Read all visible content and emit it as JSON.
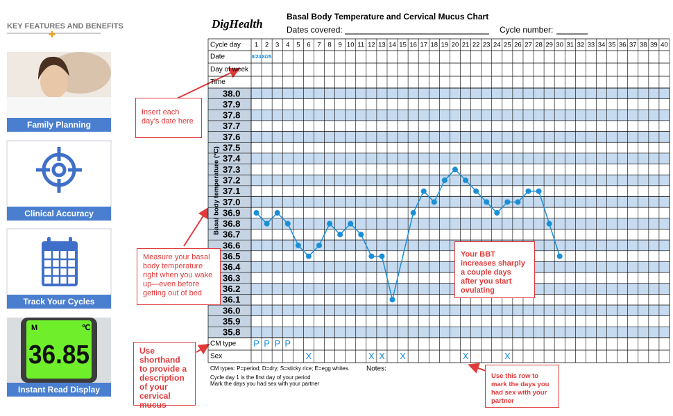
{
  "sidebar": {
    "heading": "KEY FEATURES AND BENEFITS",
    "cards": [
      "Family Planning",
      "Clinical Accuracy",
      "Track Your Cycles",
      "Instant Read Display"
    ],
    "display": {
      "mode": "M",
      "unit": "℃",
      "reading": "36.85"
    }
  },
  "header": {
    "brand": "DigHealth",
    "title": "Basal Body Temperature and Cervical Mucus Chart",
    "dates_label": "Dates covered:",
    "cycle_label": "Cycle number:"
  },
  "chart_data": {
    "type": "line",
    "y_label": "Basal body temperature (°C)",
    "row_labels": {
      "cycle_day": "Cycle day",
      "date": "Date",
      "day_of_week": "Day of week",
      "time": "Time",
      "cm_type": "CM type",
      "sex": "Sex"
    },
    "xlim": [
      0.5,
      40.5
    ],
    "xticks": [
      1,
      2,
      3,
      4,
      5,
      6,
      7,
      8,
      9,
      10,
      11,
      12,
      13,
      14,
      15,
      16,
      17,
      18,
      19,
      20,
      21,
      22,
      23,
      24,
      25,
      26,
      27,
      28,
      29,
      30,
      31,
      32,
      33,
      34,
      35,
      36,
      37,
      38,
      39,
      40
    ],
    "ylim": [
      35.75,
      38.05
    ],
    "yticks": [
      {
        "value": 38.0,
        "label": "38.0"
      },
      {
        "value": 37.9,
        "label": "37.9"
      },
      {
        "value": 37.8,
        "label": "37.8"
      },
      {
        "value": 37.7,
        "label": "37.7"
      },
      {
        "value": 37.6,
        "label": "37.6"
      },
      {
        "value": 37.5,
        "label": "37.5"
      },
      {
        "value": 37.4,
        "label": "37.4"
      },
      {
        "value": 37.3,
        "label": "37.3"
      },
      {
        "value": 37.2,
        "label": "37.2"
      },
      {
        "value": 37.1,
        "label": "37.1"
      },
      {
        "value": 37.0,
        "label": "37.0"
      },
      {
        "value": 36.9,
        "label": "36.9"
      },
      {
        "value": 36.8,
        "label": "36.8"
      },
      {
        "value": 36.7,
        "label": "36.7"
      },
      {
        "value": 36.6,
        "label": "36.6"
      },
      {
        "value": 36.5,
        "label": "36.5"
      },
      {
        "value": 36.4,
        "label": "36.4"
      },
      {
        "value": 36.3,
        "label": "36.3"
      },
      {
        "value": 36.2,
        "label": "36.2"
      },
      {
        "value": 36.1,
        "label": "36.1"
      },
      {
        "value": 36.0,
        "label": "36.0"
      },
      {
        "value": 35.9,
        "label": "35.9"
      },
      {
        "value": 35.8,
        "label": "35.8"
      }
    ],
    "x": [
      1,
      2,
      3,
      4,
      5,
      6,
      7,
      8,
      9,
      10,
      11,
      12,
      13,
      14,
      16,
      17,
      18,
      19,
      20,
      21,
      22,
      23,
      24,
      25,
      26,
      27,
      28,
      29,
      30
    ],
    "values": [
      36.9,
      36.8,
      36.9,
      36.8,
      36.6,
      36.5,
      36.6,
      36.8,
      36.7,
      36.8,
      36.7,
      36.5,
      36.5,
      36.1,
      36.9,
      37.1,
      37.0,
      37.2,
      37.3,
      37.2,
      37.1,
      37.0,
      36.9,
      37.0,
      37.0,
      37.1,
      37.1,
      36.8,
      36.5
    ],
    "color": "#1a8fd8",
    "dates": [
      {
        "day": 1,
        "text": "8/24"
      },
      {
        "day": 2,
        "text": "8/25"
      }
    ],
    "cm_entries": [
      {
        "day": 1,
        "code": "P"
      },
      {
        "day": 2,
        "code": "P"
      },
      {
        "day": 3,
        "code": "P"
      },
      {
        "day": 4,
        "code": "P"
      }
    ],
    "sex_mark": "X",
    "sex_days": [
      6,
      12,
      13,
      15,
      21,
      25
    ]
  },
  "footer": {
    "cm_key": "CM types: P=period; D=dry; S=sticky rice; E=egg whites.",
    "notes_label": "Notes:",
    "line1": "Cycle day 1 is the first day of your period",
    "line2": "Mark the days you had sex with your partner"
  },
  "annotations": [
    "Insert each day's date here",
    "Measure your basal body temperature right when you wake up—even before getting out of bed",
    "Use shorthand to provide a description of your cervical mucus",
    "Your BBT increases sharply a couple days after you start ovulating",
    "Use this row to mark the days you had sex with your partner"
  ]
}
